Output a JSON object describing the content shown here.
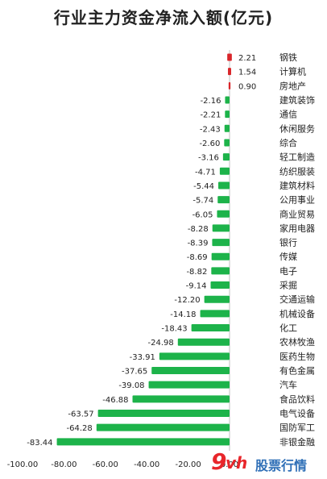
{
  "chart_data": {
    "type": "bar",
    "orientation": "horizontal",
    "title": "行业主力资金净流入额(亿元)",
    "categories": [
      "钢铁",
      "计算机",
      "房地产",
      "建筑装饰",
      "通信",
      "休闲服务",
      "综合",
      "轻工制造",
      "纺织服装",
      "建筑材料",
      "公用事业",
      "商业贸易",
      "家用电器",
      "银行",
      "传媒",
      "电子",
      "采掘",
      "交通运输",
      "机械设备",
      "化工",
      "农林牧渔",
      "医药生物",
      "有色金属",
      "汽车",
      "食品饮料",
      "电气设备",
      "国防军工",
      "非银金融"
    ],
    "values": [
      2.21,
      1.54,
      0.9,
      -2.16,
      -2.21,
      -2.43,
      -2.6,
      -3.16,
      -4.71,
      -5.44,
      -5.74,
      -6.05,
      -8.28,
      -8.39,
      -8.69,
      -8.82,
      -9.14,
      -12.2,
      -14.18,
      -18.43,
      -24.98,
      -33.91,
      -37.65,
      -39.08,
      -46.88,
      -63.57,
      -64.28,
      -83.44
    ],
    "value_labels": [
      "2.21",
      "1.54",
      "0.90",
      "-2.16",
      "-2.21",
      "-2.43",
      "-2.60",
      "-3.16",
      "-4.71",
      "-5.44",
      "-5.74",
      "-6.05",
      "-8.28",
      "-8.39",
      "-8.69",
      "-8.82",
      "-9.14",
      "-12.20",
      "-14.18",
      "-18.43",
      "-24.98",
      "-33.91",
      "-37.65",
      "-39.08",
      "-46.88",
      "-63.57",
      "-64.28",
      "-83.44"
    ],
    "x_ticks": [
      "-100.00",
      "-80.00",
      "-60.00",
      "-40.00",
      "-20.00",
      "0.00"
    ],
    "xlim": [
      -100,
      0
    ],
    "colors": {
      "positive": "#d9262a",
      "negative": "#1db34a"
    },
    "grid": false,
    "legend": "none"
  },
  "watermark": {
    "logo_digit": "9",
    "logo_letters": "vh",
    "text": "股票行情"
  }
}
